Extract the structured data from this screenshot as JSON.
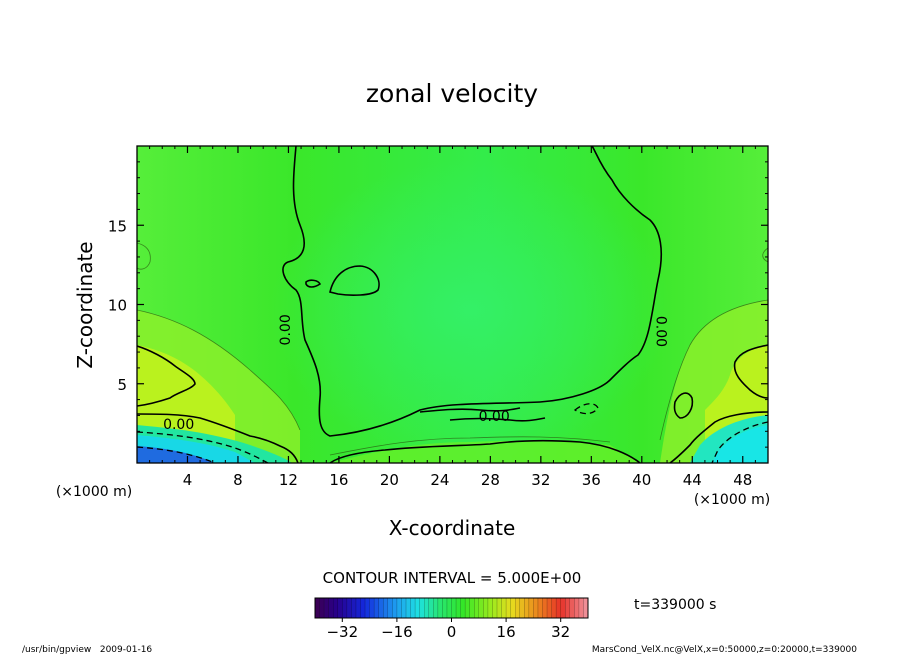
{
  "chart_data": {
    "type": "heatmap",
    "title": "zonal velocity",
    "xlabel": "X-coordinate",
    "ylabel": "Z-coordinate",
    "x_unit_label": "(×1000 m)",
    "z_unit_label": "(×1000 m)",
    "xlim": [
      0,
      50
    ],
    "ylim": [
      0,
      20
    ],
    "x_ticks": [
      4,
      8,
      12,
      16,
      20,
      24,
      28,
      32,
      36,
      40,
      44,
      48
    ],
    "y_ticks": [
      5,
      10,
      15
    ],
    "contour_interval_text": "CONTOUR INTERVAL = 5.000E+00",
    "contour_labels": [
      {
        "text": "0.00",
        "x": 11.8,
        "z": 8.4,
        "rotate": -90
      },
      {
        "text": "0.00",
        "x": 41.5,
        "z": 8.3,
        "rotate": 90
      },
      {
        "text": "0.00",
        "x": 3.3,
        "z": 2.4,
        "rotate": 0
      },
      {
        "text": "0.00",
        "x": 28.3,
        "z": 2.9,
        "rotate": 0
      }
    ],
    "colorbar": {
      "range": [
        -40,
        40
      ],
      "tick_values": [
        -32,
        -16,
        0,
        16,
        32
      ]
    },
    "time_label": "t=339000 s",
    "footer_left": "/usr/bin/gpview   2009-01-16",
    "footer_right": "MarsCond_VelX.nc@VelX,x=0:50000,z=0:20000,t=339000"
  },
  "colors": {
    "field_green": "#2fe51c",
    "field_light_green": "#3ff04d",
    "field_yellow": "#b8f21c",
    "field_cyan": "#18e2e0",
    "field_blue": "#1f5bd6"
  }
}
